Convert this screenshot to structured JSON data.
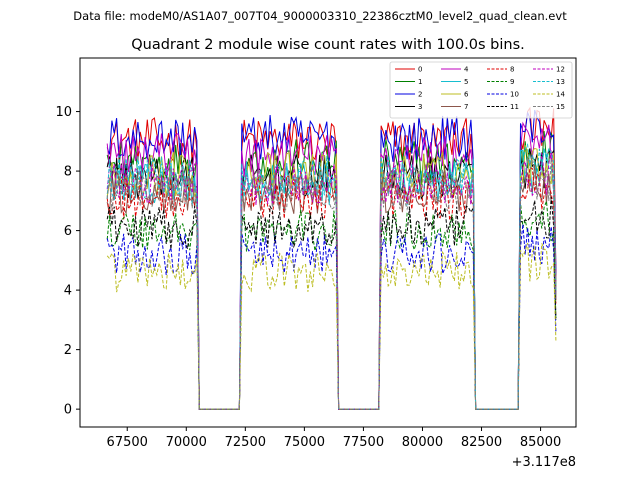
{
  "chart_data": {
    "type": "line",
    "suptitle": "Data file: modeM0/AS1A07_007T04_9000003310_22386cztM0_level2_quad_clean.evt",
    "title": "Quadrant 2 module wise count rates with 100.0s bins.",
    "xlabel": "",
    "ylabel": "",
    "x_offset_label": "+3.117e8",
    "xlim": [
      65500,
      86500
    ],
    "ylim": [
      -0.6,
      11.8
    ],
    "xticks": [
      67500,
      70000,
      72500,
      75000,
      77500,
      80000,
      82500,
      85000
    ],
    "yticks": [
      0,
      2,
      4,
      6,
      8,
      10
    ],
    "x_start": 66650,
    "x_end": 85650,
    "bin_width": 100,
    "segments": [
      {
        "start": 66650,
        "end": 70450
      },
      {
        "start": 72350,
        "end": 76350
      },
      {
        "start": 78250,
        "end": 82150
      },
      {
        "start": 84150,
        "end": 85650
      }
    ],
    "legend_position": "upper right",
    "series": [
      {
        "name": "0",
        "color": "#e00000",
        "dash": "solid",
        "level": 9.0
      },
      {
        "name": "1",
        "color": "#008000",
        "dash": "solid",
        "level": 8.3
      },
      {
        "name": "2",
        "color": "#0000e0",
        "dash": "solid",
        "level": 9.1
      },
      {
        "name": "3",
        "color": "#000000",
        "dash": "solid",
        "level": 7.8
      },
      {
        "name": "4",
        "color": "#bf00bf",
        "dash": "solid",
        "level": 8.5
      },
      {
        "name": "5",
        "color": "#17becf",
        "dash": "solid",
        "level": 7.6
      },
      {
        "name": "6",
        "color": "#bcbd22",
        "dash": "solid",
        "level": 7.9
      },
      {
        "name": "7",
        "color": "#8c564b",
        "dash": "solid",
        "level": 7.3
      },
      {
        "name": "8",
        "color": "#e00000",
        "dash": "dashed",
        "level": 7.1
      },
      {
        "name": "9",
        "color": "#008000",
        "dash": "dashed",
        "level": 6.0
      },
      {
        "name": "10",
        "color": "#0000e0",
        "dash": "dashed",
        "level": 5.2
      },
      {
        "name": "11",
        "color": "#000000",
        "dash": "dashed",
        "level": 6.1
      },
      {
        "name": "12",
        "color": "#bf00bf",
        "dash": "dashed",
        "level": 7.6
      },
      {
        "name": "13",
        "color": "#17becf",
        "dash": "dashed",
        "level": 7.8
      },
      {
        "name": "14",
        "color": "#bcbd22",
        "dash": "dashed",
        "level": 4.6
      },
      {
        "name": "15",
        "color": "#7f7f7f",
        "dash": "dashed",
        "level": 7.4
      }
    ]
  }
}
